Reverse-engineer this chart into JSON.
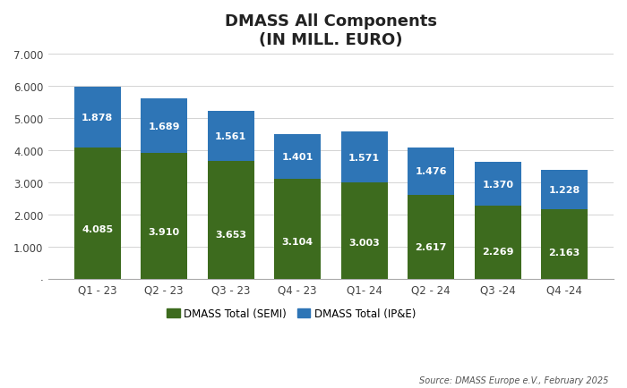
{
  "title": "DMASS All Components\n(IN MILL. EURO)",
  "categories": [
    "Q1 - 23",
    "Q2 - 23",
    "Q3 - 23",
    "Q4 - 23",
    "Q1- 24",
    "Q2 - 24",
    "Q3 -24",
    "Q4 -24"
  ],
  "semi_values": [
    4.085,
    3.91,
    3.653,
    3.104,
    3.003,
    2.617,
    2.269,
    2.163
  ],
  "ipe_values": [
    1.878,
    1.689,
    1.561,
    1.401,
    1.571,
    1.476,
    1.37,
    1.228
  ],
  "semi_color": "#3d6b1e",
  "ipe_color": "#2e75b6",
  "background_color": "#ffffff",
  "ylim": [
    0,
    7.0
  ],
  "yticks": [
    0,
    1.0,
    2.0,
    3.0,
    4.0,
    5.0,
    6.0,
    7.0
  ],
  "ytick_labels": [
    "·",
    "1.000",
    "2.000",
    "3.000",
    "4.000",
    "5.000",
    "6.000",
    "7.000"
  ],
  "legend_semi": "DMASS Total (SEMI)",
  "legend_ipe": "DMASS Total (IP&E)",
  "source_text": "Source: DMASS Europe e.V., February 2025",
  "title_fontsize": 13,
  "label_fontsize": 8,
  "tick_fontsize": 8.5,
  "legend_fontsize": 8.5,
  "source_fontsize": 7
}
